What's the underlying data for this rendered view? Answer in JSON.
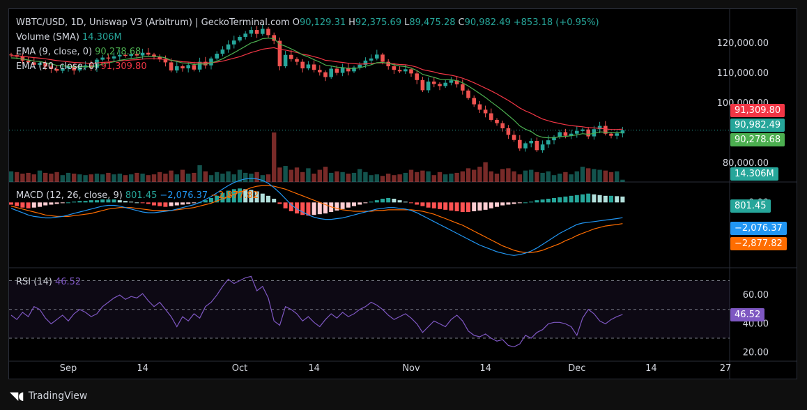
{
  "header": {
    "symbol": "WBTC/USD, 1D, Uniswap V3 (Arbitrum) | GeckoTerminal.com",
    "o_label": "O",
    "o_value": "90,129.31",
    "h_label": "H",
    "h_value": "92,375.69",
    "l_label": "L",
    "l_value": "89,475.28",
    "c_label": "C",
    "c_value": "90,982.49",
    "change": "+853.18 (+0.95%)"
  },
  "indicators": {
    "volume": {
      "label": "Volume (SMA)",
      "value": "14.306M"
    },
    "ema9": {
      "label": "EMA (9, close, 0)",
      "value": "90,278.68"
    },
    "ema20": {
      "label": "EMA (20, close, 0)",
      "value": "91,309.80"
    },
    "macd": {
      "label": "MACD (12, 26, close, 9)",
      "hist": "801.45",
      "macd": "−2,076.37",
      "signal": "−2,877.82"
    },
    "rsi": {
      "label": "RSI (14)",
      "value": "46.52"
    }
  },
  "badges": {
    "ema20": "91,309.80",
    "last": "90,982.49",
    "ema9": "90,278.68",
    "volume": "14.306M",
    "macd_hist": "801.45",
    "macd": "−2,076.37",
    "macd_signal": "−2,877.82",
    "rsi": "46.52"
  },
  "colors": {
    "up": "#26a69a",
    "down": "#ef5350",
    "ema9": "#4caf50",
    "ema20": "#f23645",
    "macd": "#2196f3",
    "signal": "#ff6d00",
    "rsi": "#7e57c2",
    "bg": "#000000"
  },
  "branding": {
    "logo_text": "TradingView"
  },
  "chart_data": [
    {
      "type": "candlestick",
      "title": "WBTC/USD, 1D, Uniswap V3 (Arbitrum)",
      "ylim": [
        76000,
        130000
      ],
      "y_ticks": [
        80000,
        100000,
        110000,
        120000
      ],
      "y_tick_labels": [
        "80,000.00",
        "100,000.00",
        "110,000.00",
        "120,000.00"
      ],
      "x_tick_labels": [
        "Sep",
        "14",
        "Oct",
        "14",
        "Nov",
        "14",
        "Dec",
        "14",
        "27"
      ],
      "x_tick_index": [
        10,
        23,
        40,
        53,
        70,
        83,
        99,
        112,
        125
      ],
      "close": [
        116000,
        115500,
        114200,
        113600,
        112800,
        113400,
        112200,
        111400,
        110800,
        111600,
        112400,
        110900,
        111900,
        112600,
        111800,
        114500,
        115200,
        114900,
        115600,
        116100,
        115800,
        116400,
        115900,
        116800,
        116200,
        115400,
        114800,
        113600,
        110900,
        112300,
        111600,
        112700,
        111200,
        113800,
        112600,
        114900,
        116500,
        117900,
        119600,
        120900,
        122100,
        123200,
        124400,
        123100,
        124800,
        122700,
        120800,
        112300,
        116100,
        114700,
        113800,
        111600,
        112900,
        111100,
        110300,
        108700,
        111500,
        110100,
        111800,
        110600,
        111900,
        112800,
        114200,
        114900,
        116200,
        113800,
        112300,
        111100,
        110600,
        111300,
        109900,
        107700,
        104300,
        107200,
        106400,
        105700,
        106800,
        107600,
        106300,
        104200,
        101700,
        99600,
        97800,
        96600,
        94400,
        93300,
        91600,
        89400,
        87700,
        84900,
        86600,
        87400,
        84300,
        86200,
        87600,
        88700,
        90300,
        89100,
        89800,
        90700,
        91200,
        88900,
        91300,
        92400,
        89800,
        89100,
        89900,
        90982
      ],
      "volume_m": [
        14,
        13,
        11,
        12,
        10,
        15,
        12,
        11,
        13,
        9,
        12,
        11,
        10,
        9,
        10,
        11,
        10,
        12,
        10,
        11,
        9,
        10,
        12,
        11,
        9,
        10,
        13,
        11,
        15,
        10,
        16,
        11,
        12,
        22,
        14,
        9,
        13,
        11,
        14,
        10,
        16,
        12,
        11,
        13,
        9,
        10,
        65,
        19,
        21,
        16,
        19,
        13,
        18,
        11,
        16,
        20,
        12,
        14,
        13,
        11,
        12,
        17,
        13,
        9,
        10,
        8,
        11,
        9,
        10,
        12,
        16,
        13,
        15,
        14,
        9,
        13,
        10,
        11,
        12,
        14,
        18,
        16,
        20,
        26,
        14,
        11,
        17,
        18,
        14,
        10,
        15,
        16,
        13,
        12,
        14,
        9,
        11,
        13,
        10,
        14,
        20,
        18,
        17,
        16,
        15,
        13,
        14,
        3
      ],
      "ema9": [
        115100,
        115000,
        114700,
        114400,
        114000,
        113900,
        113500,
        113100,
        112600,
        112400,
        112400,
        112100,
        112100,
        112200,
        112100,
        112500,
        113000,
        113400,
        113800,
        114300,
        114600,
        114900,
        115100,
        115400,
        115600,
        115600,
        115500,
        115100,
        114300,
        113900,
        113400,
        113300,
        112900,
        113100,
        113000,
        113400,
        114000,
        114800,
        115800,
        116800,
        117900,
        119000,
        120100,
        120700,
        121500,
        121700,
        121500,
        119700,
        119000,
        118100,
        117200,
        116100,
        115400,
        114500,
        113700,
        112700,
        112400,
        112000,
        111900,
        111600,
        111600,
        111800,
        112300,
        112800,
        113500,
        113600,
        113300,
        112800,
        112400,
        112200,
        111700,
        110900,
        109600,
        109100,
        108600,
        108000,
        107800,
        107800,
        107500,
        106800,
        105700,
        104500,
        103200,
        101900,
        100400,
        99000,
        97500,
        95900,
        94300,
        92400,
        91300,
        90500,
        89200,
        88600,
        88400,
        88400,
        88800,
        88900,
        89100,
        89400,
        89800,
        89600,
        89900,
        90400,
        90300,
        90100,
        90100,
        90279
      ],
      "ema20": [
        115800,
        115800,
        115600,
        115400,
        115200,
        115000,
        114800,
        114500,
        114200,
        114000,
        113800,
        113600,
        113500,
        113400,
        113200,
        113400,
        113600,
        113700,
        113900,
        114100,
        114200,
        114400,
        114500,
        114700,
        114800,
        114800,
        114700,
        114600,
        114300,
        114100,
        113800,
        113700,
        113500,
        113500,
        113400,
        113500,
        113700,
        114000,
        114500,
        115000,
        115500,
        116200,
        116900,
        117400,
        118000,
        118300,
        118500,
        117900,
        117700,
        117300,
        116900,
        116300,
        116000,
        115500,
        115000,
        114300,
        114100,
        113800,
        113600,
        113300,
        113200,
        113000,
        113100,
        113200,
        113400,
        113400,
        113300,
        113100,
        112900,
        112800,
        112500,
        112000,
        111200,
        110800,
        110400,
        109900,
        109600,
        109300,
        108900,
        108300,
        107600,
        106800,
        105900,
        105000,
        104100,
        103100,
        102000,
        100900,
        99700,
        98400,
        97400,
        96600,
        95600,
        94700,
        94100,
        93600,
        93200,
        92800,
        92500,
        92300,
        92100,
        91800,
        91700,
        91600,
        91400,
        91200,
        91200,
        91310
      ]
    },
    {
      "type": "histogram+line",
      "title": "MACD (12, 26, close, 9)",
      "ylim": [
        -8500,
        2400
      ],
      "y_ticks": [
        0
      ],
      "y_tick_labels": [
        "0.00"
      ],
      "hist": [
        -300,
        -500,
        -700,
        -800,
        -700,
        -600,
        -400,
        -300,
        -200,
        -100,
        0,
        100,
        200,
        200,
        300,
        300,
        400,
        400,
        400,
        300,
        200,
        100,
        0,
        -100,
        -200,
        -400,
        -500,
        -600,
        -500,
        -400,
        -300,
        -200,
        -100,
        0,
        300,
        600,
        900,
        1300,
        1600,
        1800,
        1900,
        1800,
        1700,
        1500,
        1200,
        900,
        500,
        -200,
        -800,
        -1200,
        -1500,
        -1700,
        -1800,
        -1700,
        -1600,
        -1500,
        -1300,
        -1100,
        -900,
        -700,
        -500,
        -300,
        -100,
        100,
        300,
        500,
        600,
        500,
        300,
        100,
        -100,
        -300,
        -500,
        -700,
        -800,
        -900,
        -1000,
        -1100,
        -1200,
        -1300,
        -1300,
        -1200,
        -1100,
        -1000,
        -800,
        -600,
        -400,
        -300,
        -200,
        -100,
        0,
        100,
        300,
        400,
        500,
        600,
        700,
        800,
        900,
        1000,
        1100,
        1200,
        1100,
        1000,
        900,
        900,
        850,
        801
      ],
      "macd": [
        -800,
        -1100,
        -1400,
        -1700,
        -1900,
        -2000,
        -2100,
        -2100,
        -2000,
        -1900,
        -1700,
        -1500,
        -1300,
        -1100,
        -900,
        -700,
        -500,
        -400,
        -400,
        -500,
        -700,
        -900,
        -1100,
        -1300,
        -1400,
        -1400,
        -1300,
        -1200,
        -1100,
        -900,
        -700,
        -500,
        -300,
        0,
        400,
        800,
        1300,
        1800,
        2300,
        2700,
        3000,
        3200,
        3300,
        3200,
        3000,
        2600,
        2000,
        1300,
        500,
        -300,
        -900,
        -1300,
        -1700,
        -2000,
        -2200,
        -2300,
        -2300,
        -2200,
        -2100,
        -1900,
        -1700,
        -1500,
        -1300,
        -1100,
        -900,
        -800,
        -700,
        -700,
        -800,
        -900,
        -1100,
        -1400,
        -1800,
        -2200,
        -2600,
        -3000,
        -3400,
        -3800,
        -4200,
        -4600,
        -5000,
        -5400,
        -5800,
        -6100,
        -6400,
        -6700,
        -6900,
        -7100,
        -7200,
        -7100,
        -6900,
        -6600,
        -6200,
        -5700,
        -5200,
        -4700,
        -4200,
        -3800,
        -3400,
        -3000,
        -2800,
        -2700,
        -2600,
        -2500,
        -2400,
        -2300,
        -2200,
        -2076
      ],
      "signal": [
        -500,
        -700,
        -900,
        -1100,
        -1300,
        -1500,
        -1700,
        -1800,
        -1900,
        -1900,
        -1900,
        -1800,
        -1700,
        -1600,
        -1500,
        -1300,
        -1100,
        -900,
        -800,
        -700,
        -700,
        -700,
        -800,
        -900,
        -1000,
        -1100,
        -1100,
        -1100,
        -1100,
        -1000,
        -900,
        -800,
        -700,
        -500,
        -300,
        -100,
        200,
        500,
        800,
        1100,
        1400,
        1700,
        2000,
        2200,
        2300,
        2300,
        2200,
        2000,
        1800,
        1500,
        1200,
        900,
        600,
        300,
        0,
        -300,
        -600,
        -800,
        -1000,
        -1100,
        -1200,
        -1200,
        -1200,
        -1200,
        -1100,
        -1100,
        -1000,
        -1000,
        -1000,
        -1000,
        -1000,
        -1100,
        -1200,
        -1400,
        -1600,
        -1900,
        -2200,
        -2500,
        -2800,
        -3100,
        -3500,
        -3900,
        -4300,
        -4700,
        -5100,
        -5500,
        -5900,
        -6200,
        -6500,
        -6700,
        -6800,
        -6800,
        -6700,
        -6500,
        -6200,
        -5900,
        -5600,
        -5200,
        -4900,
        -4500,
        -4200,
        -3900,
        -3600,
        -3400,
        -3200,
        -3100,
        -3000,
        -2878
      ]
    },
    {
      "type": "line",
      "title": "RSI (14)",
      "ylim": [
        15,
        78
      ],
      "y_ticks": [
        20,
        40,
        60
      ],
      "y_tick_labels": [
        "20.00",
        "40.00",
        "60.00"
      ],
      "bands": [
        30,
        50,
        70
      ],
      "rsi": [
        46,
        43,
        48,
        45,
        52,
        50,
        44,
        40,
        43,
        46,
        42,
        47,
        50,
        48,
        45,
        47,
        52,
        55,
        58,
        60,
        57,
        59,
        58,
        61,
        56,
        52,
        55,
        50,
        45,
        38,
        45,
        42,
        47,
        44,
        52,
        55,
        60,
        66,
        71,
        68,
        70,
        72,
        73,
        63,
        66,
        58,
        42,
        39,
        52,
        50,
        47,
        42,
        45,
        41,
        38,
        43,
        47,
        44,
        48,
        45,
        47,
        50,
        52,
        55,
        53,
        50,
        46,
        43,
        45,
        47,
        44,
        40,
        34,
        38,
        42,
        40,
        38,
        43,
        46,
        42,
        35,
        32,
        31,
        33,
        30,
        28,
        29,
        25,
        24,
        26,
        32,
        30,
        34,
        36,
        40,
        41,
        41,
        40,
        38,
        32,
        44,
        50,
        47,
        42,
        40,
        43,
        45,
        46.52
      ]
    }
  ]
}
